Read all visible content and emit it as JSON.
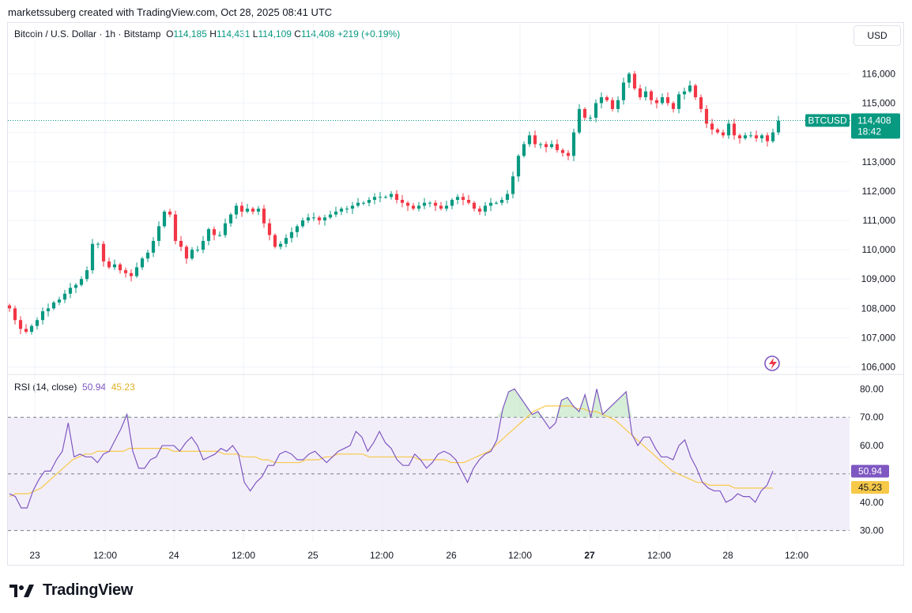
{
  "header": {
    "credit": "marketssuberg created with TradingView.com, Oct 28, 2025 08:41 UTC",
    "symbol": "Bitcoin / U.S. Dollar · 1h · Bitstamp",
    "o_label": "O",
    "o_value": "114,185",
    "h_label": "H",
    "h_value": "114,431",
    "l_label": "L",
    "l_value": "114,109",
    "c_label": "C",
    "c_value": "114,408",
    "change": "+219 (+0.19%)",
    "currency": "USD"
  },
  "price_tag": {
    "symbol": "BTCUSD",
    "price": "114,408",
    "countdown": "18:42"
  },
  "rsi_legend": {
    "label": "RSI (14, close)",
    "rsi": "50.94",
    "ma": "45.23"
  },
  "rsi_tags": {
    "rsi": "50.94",
    "ma": "45.23"
  },
  "brand": {
    "name": "TradingView"
  },
  "colors": {
    "up": "#089981",
    "down": "#f23645",
    "rsi": "#7e57c2",
    "rsi_ma": "#f7c948",
    "band": "#ede7f6"
  },
  "chart_data": [
    {
      "type": "candlestick",
      "title": "Bitcoin / U.S. Dollar · 1h · Bitstamp",
      "x_ticks": [
        "23",
        "12:00",
        "24",
        "12:00",
        "25",
        "12:00",
        "26",
        "12:00",
        "27",
        "12:00",
        "28",
        "12:00"
      ],
      "y_ticks": [
        "106,000",
        "107,000",
        "108,000",
        "109,000",
        "110,000",
        "111,000",
        "112,000",
        "113,000",
        "114,000",
        "115,000",
        "116,000"
      ],
      "ylim": [
        105800,
        116900
      ],
      "last_price": 114408,
      "closes": [
        108000,
        107600,
        107300,
        107200,
        107400,
        107600,
        107900,
        108000,
        108200,
        108300,
        108500,
        108700,
        108800,
        109000,
        109300,
        110200,
        110200,
        109600,
        109400,
        109500,
        109300,
        109200,
        109100,
        109400,
        109700,
        109900,
        110300,
        110800,
        111300,
        111200,
        110300,
        110100,
        109700,
        110000,
        110000,
        110300,
        110700,
        110500,
        110500,
        110900,
        111200,
        111500,
        111300,
        111400,
        111300,
        111400,
        110900,
        110500,
        110100,
        110200,
        110400,
        110600,
        110800,
        111000,
        111100,
        111100,
        111000,
        111100,
        111200,
        111300,
        111400,
        111400,
        111500,
        111600,
        111600,
        111700,
        111800,
        111800,
        111800,
        111900,
        111700,
        111600,
        111500,
        111400,
        111500,
        111600,
        111600,
        111500,
        111400,
        111500,
        111700,
        111800,
        111700,
        111600,
        111400,
        111300,
        111500,
        111600,
        111600,
        111700,
        111900,
        112500,
        113200,
        113600,
        113900,
        113600,
        113600,
        113500,
        113600,
        113400,
        113300,
        113200,
        114000,
        114800,
        114500,
        114500,
        115000,
        115200,
        115100,
        114800,
        115100,
        115700,
        116000,
        115500,
        115200,
        115400,
        115100,
        115000,
        115200,
        115000,
        114800,
        115300,
        115400,
        115600,
        115200,
        114800,
        114300,
        114100,
        114000,
        113900,
        114300,
        113900,
        113800,
        113900,
        113900,
        113800,
        113900,
        113700,
        114000,
        114400
      ]
    },
    {
      "type": "line",
      "title": "RSI (14, close)",
      "y_ticks": [
        "30.00",
        "40.00",
        "50.00",
        "60.00",
        "70.00",
        "80.00"
      ],
      "ylim": [
        26,
        84
      ],
      "bands": [
        30,
        50,
        70
      ],
      "series": [
        {
          "name": "RSI",
          "values": [
            43,
            42,
            38,
            38,
            44,
            48,
            51,
            51,
            55,
            58,
            68,
            56,
            57,
            56,
            56,
            54,
            57,
            58,
            62,
            66,
            71,
            58,
            52,
            52,
            55,
            56,
            60,
            60,
            60,
            58,
            61,
            63,
            60,
            55,
            56,
            57,
            59,
            58,
            60,
            57,
            47,
            44,
            47,
            49,
            53,
            53,
            57,
            58,
            57,
            55,
            55,
            57,
            58,
            56,
            54,
            56,
            58,
            59,
            60,
            65,
            63,
            58,
            61,
            65,
            61,
            59,
            55,
            53,
            53,
            57,
            55,
            52,
            54,
            57,
            58,
            57,
            55,
            51,
            47,
            52,
            55,
            57,
            58,
            62,
            73,
            79,
            80,
            77,
            74,
            71,
            72,
            69,
            66,
            68,
            76,
            77,
            74,
            72,
            78,
            70,
            80,
            71,
            73,
            75,
            77,
            79,
            64,
            60,
            63,
            63,
            59,
            56,
            56,
            55,
            60,
            62,
            56,
            52,
            47,
            45,
            44,
            44,
            40,
            41,
            43,
            42,
            42,
            40,
            44,
            46,
            51
          ]
        },
        {
          "name": "MA",
          "values": [
            42,
            43,
            43,
            43,
            44,
            45,
            47,
            49,
            51,
            53,
            55,
            56,
            57,
            57,
            58,
            58,
            58,
            58,
            58,
            59,
            59,
            59,
            59,
            59,
            59,
            59,
            58,
            58,
            58,
            58,
            58,
            58,
            58,
            58,
            57,
            57,
            57,
            56,
            56,
            56,
            55,
            55,
            54,
            54,
            54,
            54,
            54,
            55,
            55,
            55,
            56,
            56,
            57,
            57,
            57,
            57,
            57,
            56,
            56,
            56,
            56,
            56,
            56,
            56,
            56,
            55,
            55,
            55,
            55,
            55,
            54,
            54,
            54,
            55,
            56,
            57,
            58,
            60,
            62,
            64,
            66,
            68,
            70,
            72,
            73,
            74,
            74,
            74,
            74,
            74,
            73,
            73,
            72,
            72,
            71,
            70,
            69,
            67,
            65,
            63,
            61,
            59,
            57,
            55,
            53,
            51,
            50,
            49,
            48,
            47,
            47,
            46,
            46,
            46,
            46,
            45,
            45,
            45,
            45,
            45,
            45,
            45
          ]
        }
      ],
      "last_values": {
        "rsi": 50.94,
        "ma": 45.23
      }
    }
  ]
}
